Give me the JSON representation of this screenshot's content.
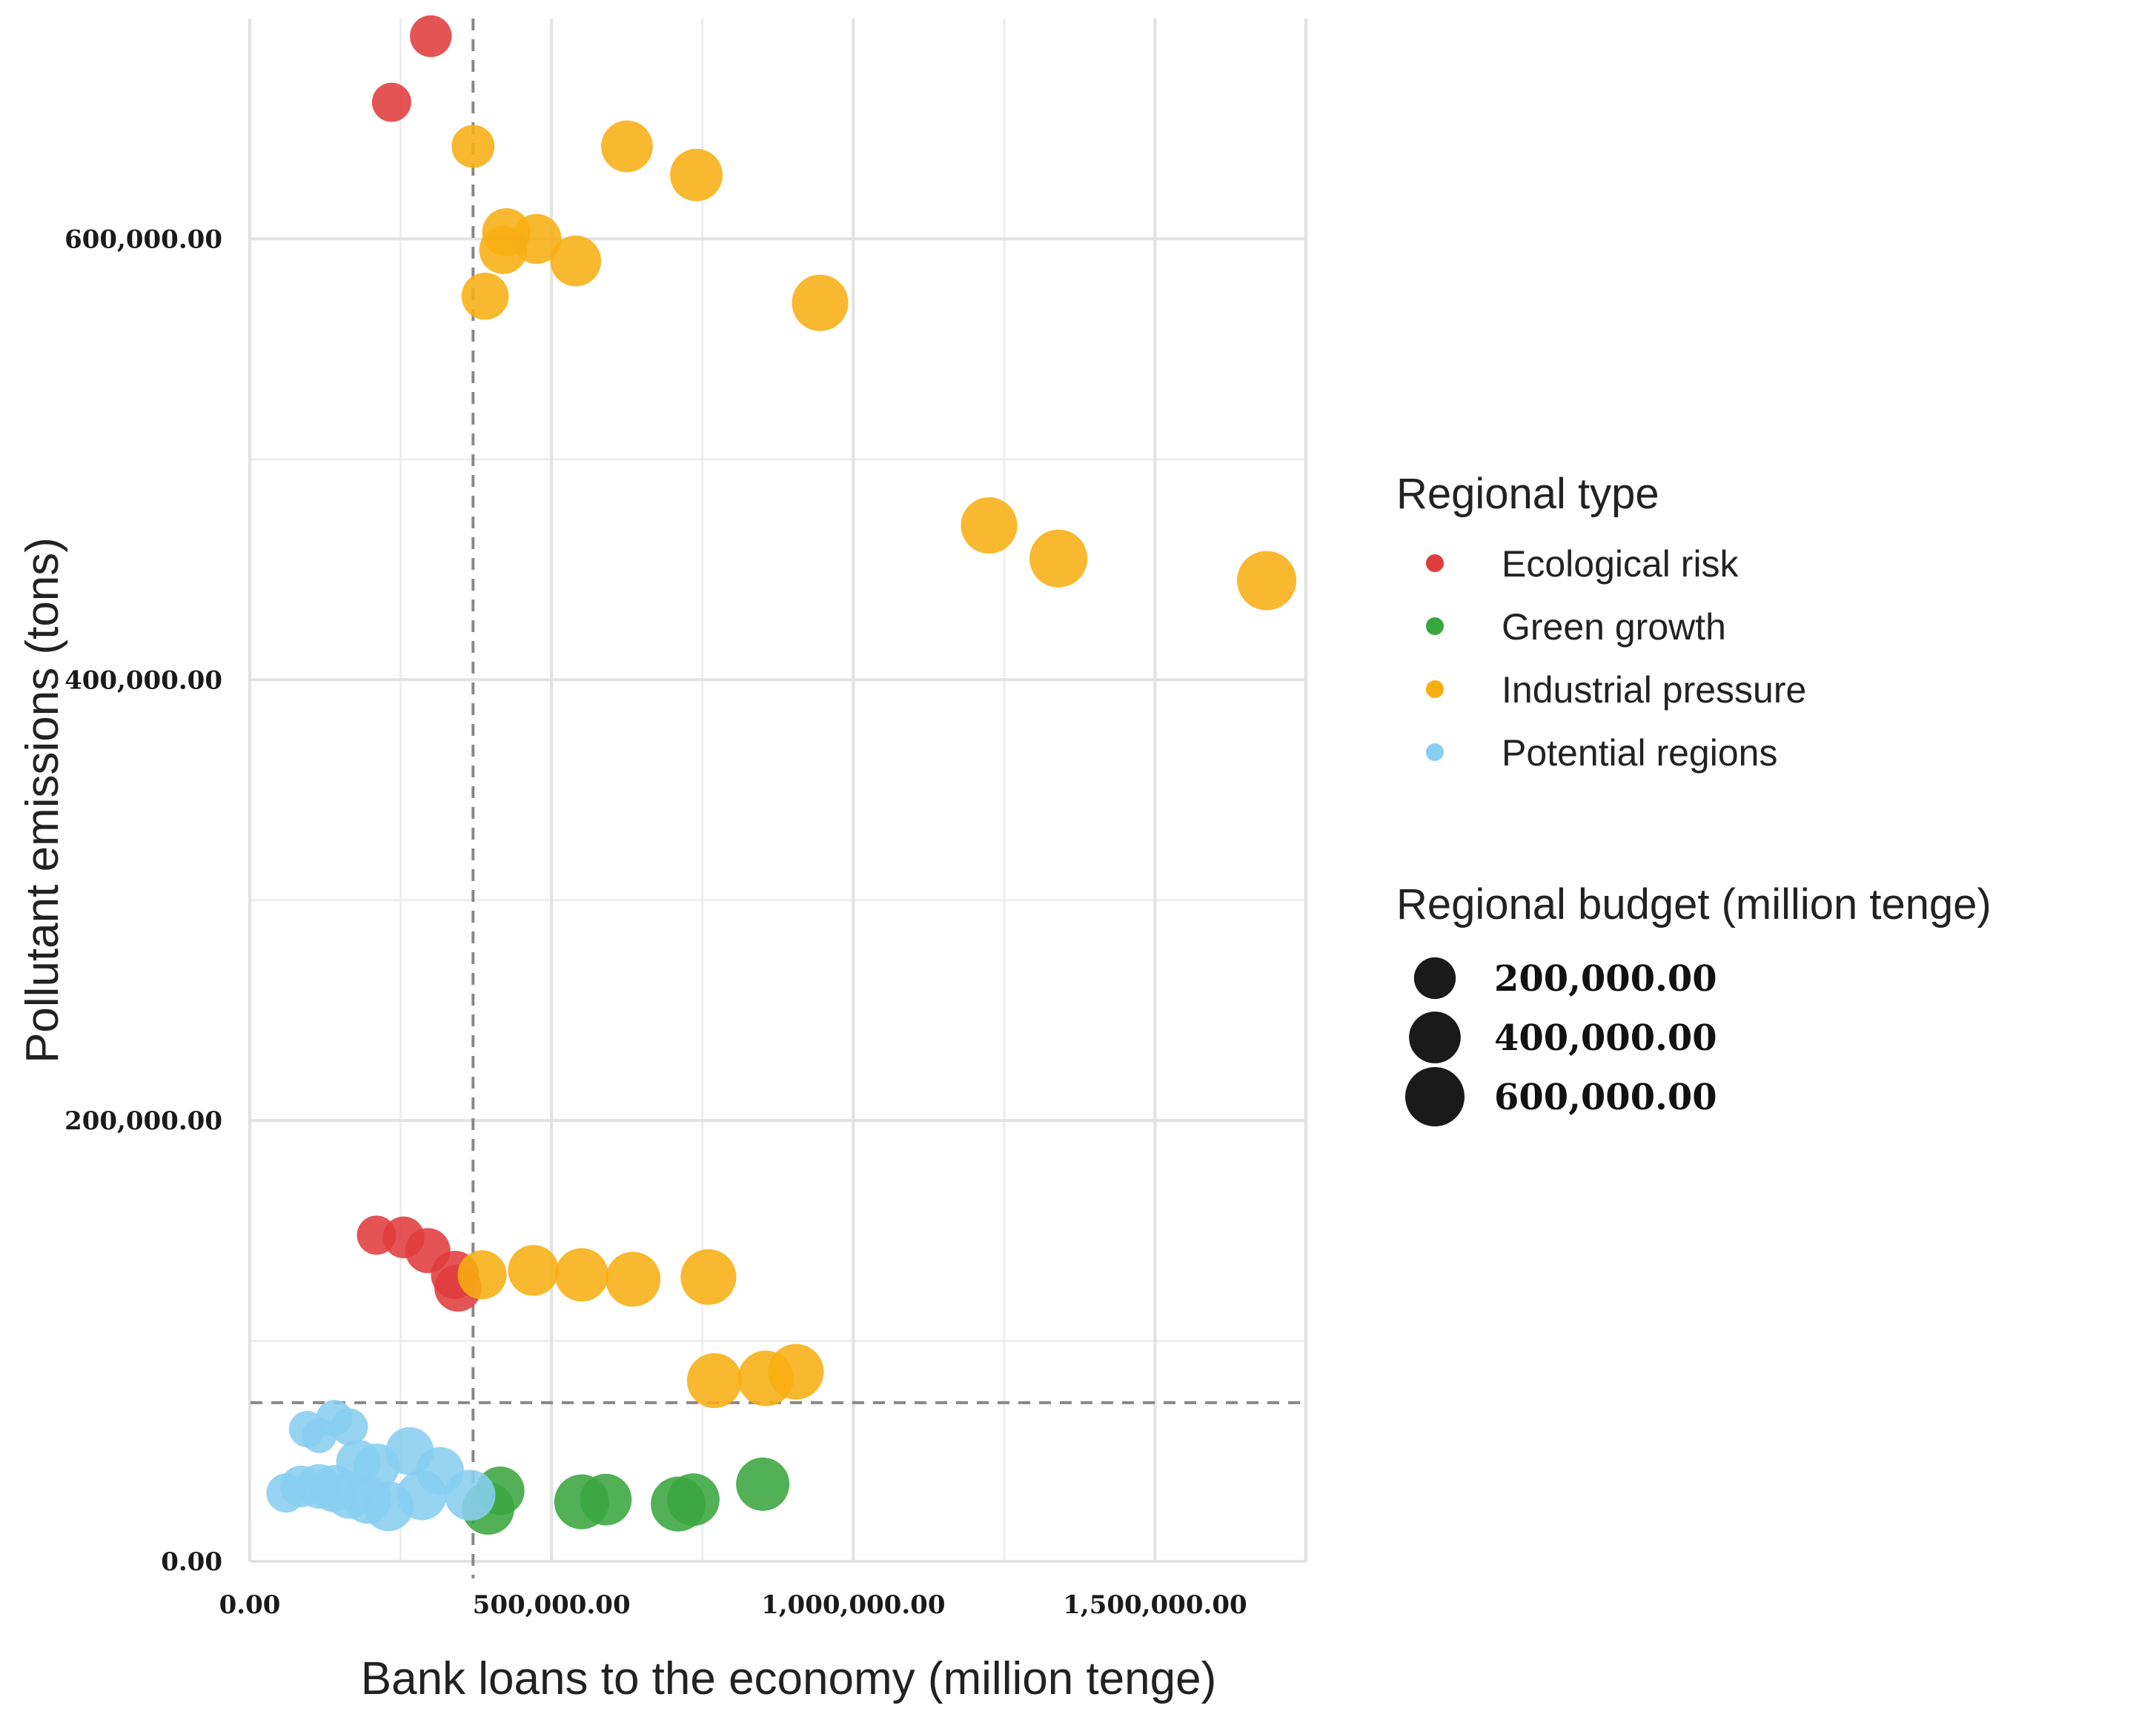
{
  "chart_data": {
    "type": "scatter",
    "xlabel": "Bank loans to the economy (million tenge)",
    "ylabel": "Pollutant emissions (tons)",
    "xlim": [
      0,
      1750000
    ],
    "ylim": [
      0,
      700000
    ],
    "x_ticks": [
      0,
      500000,
      1000000,
      1500000
    ],
    "x_tick_labels": [
      "0.00",
      "500,000.00",
      "1,000,000.00",
      "1,500,000.00"
    ],
    "y_ticks": [
      0,
      200000,
      400000,
      600000
    ],
    "y_tick_labels": [
      "0.00",
      "200,000.00",
      "400,000.00",
      "600,000.00"
    ],
    "reference_lines": {
      "vertical_x": 370000,
      "horizontal_y": 72000
    },
    "legend_color_title": "Regional type",
    "legend_size_title": "Regional budget (million tenge)",
    "size_legend": [
      {
        "value": 200000,
        "label": "200,000.00"
      },
      {
        "value": 400000,
        "label": "400,000.00"
      },
      {
        "value": 600000,
        "label": "600,000.00"
      }
    ],
    "series": [
      {
        "name": "Ecological risk",
        "color": "#e03c3c",
        "points": [
          {
            "x": 300000,
            "y": 692000,
            "budget": 200000
          },
          {
            "x": 235000,
            "y": 662000,
            "budget": 160000
          },
          {
            "x": 210000,
            "y": 148000,
            "budget": 160000
          },
          {
            "x": 255000,
            "y": 147000,
            "budget": 200000
          },
          {
            "x": 295000,
            "y": 141000,
            "budget": 260000
          },
          {
            "x": 340000,
            "y": 130000,
            "budget": 320000
          },
          {
            "x": 345000,
            "y": 124000,
            "budget": 300000
          }
        ]
      },
      {
        "name": "Green growth",
        "color": "#3aa63f",
        "points": [
          {
            "x": 415000,
            "y": 32000,
            "budget": 330000
          },
          {
            "x": 395000,
            "y": 24000,
            "budget": 420000
          },
          {
            "x": 550000,
            "y": 27000,
            "budget": 480000
          },
          {
            "x": 590000,
            "y": 28000,
            "budget": 400000
          },
          {
            "x": 710000,
            "y": 26000,
            "budget": 480000
          },
          {
            "x": 735000,
            "y": 28000,
            "budget": 420000
          },
          {
            "x": 850000,
            "y": 35000,
            "budget": 440000
          }
        ]
      },
      {
        "name": "Industrial pressure",
        "color": "#f7ae12",
        "points": [
          {
            "x": 370000,
            "y": 642000,
            "budget": 220000
          },
          {
            "x": 625000,
            "y": 642000,
            "budget": 400000
          },
          {
            "x": 740000,
            "y": 629000,
            "budget": 420000
          },
          {
            "x": 425000,
            "y": 603000,
            "budget": 320000
          },
          {
            "x": 420000,
            "y": 595000,
            "budget": 320000
          },
          {
            "x": 475000,
            "y": 600000,
            "budget": 360000
          },
          {
            "x": 540000,
            "y": 590000,
            "budget": 380000
          },
          {
            "x": 390000,
            "y": 574000,
            "budget": 300000
          },
          {
            "x": 945000,
            "y": 571000,
            "budget": 520000
          },
          {
            "x": 1225000,
            "y": 470000,
            "budget": 520000
          },
          {
            "x": 1340000,
            "y": 455000,
            "budget": 560000
          },
          {
            "x": 1685000,
            "y": 445000,
            "budget": 600000
          },
          {
            "x": 385000,
            "y": 130000,
            "budget": 340000
          },
          {
            "x": 470000,
            "y": 132000,
            "budget": 380000
          },
          {
            "x": 550000,
            "y": 130000,
            "budget": 440000
          },
          {
            "x": 635000,
            "y": 128000,
            "budget": 480000
          },
          {
            "x": 760000,
            "y": 129000,
            "budget": 500000
          },
          {
            "x": 770000,
            "y": 82000,
            "budget": 480000
          },
          {
            "x": 855000,
            "y": 83000,
            "budget": 500000
          },
          {
            "x": 905000,
            "y": 86000,
            "budget": 500000
          }
        ]
      },
      {
        "name": "Potential regions",
        "color": "#87cef0",
        "points": [
          {
            "x": 95000,
            "y": 60000,
            "budget": 120000
          },
          {
            "x": 115000,
            "y": 57000,
            "budget": 100000
          },
          {
            "x": 140000,
            "y": 65000,
            "budget": 120000
          },
          {
            "x": 165000,
            "y": 61000,
            "budget": 130000
          },
          {
            "x": 180000,
            "y": 45000,
            "budget": 250000
          },
          {
            "x": 210000,
            "y": 43000,
            "budget": 280000
          },
          {
            "x": 265000,
            "y": 50000,
            "budget": 320000
          },
          {
            "x": 315000,
            "y": 41000,
            "budget": 320000
          },
          {
            "x": 60000,
            "y": 31000,
            "budget": 160000
          },
          {
            "x": 85000,
            "y": 34000,
            "budget": 200000
          },
          {
            "x": 115000,
            "y": 34000,
            "budget": 250000
          },
          {
            "x": 140000,
            "y": 33000,
            "budget": 300000
          },
          {
            "x": 165000,
            "y": 30000,
            "budget": 300000
          },
          {
            "x": 195000,
            "y": 28000,
            "budget": 320000
          },
          {
            "x": 230000,
            "y": 25000,
            "budget": 360000
          },
          {
            "x": 285000,
            "y": 30000,
            "budget": 360000
          },
          {
            "x": 365000,
            "y": 30000,
            "budget": 380000
          }
        ]
      }
    ]
  }
}
